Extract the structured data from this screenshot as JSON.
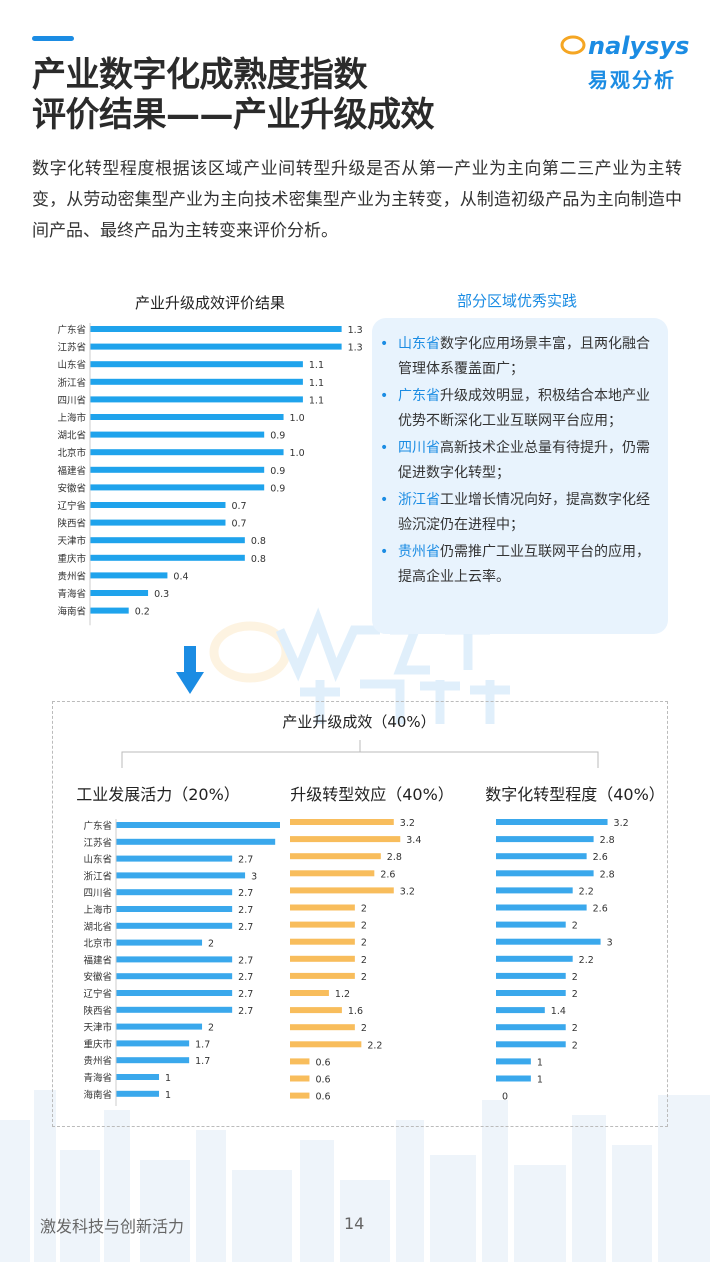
{
  "header": {
    "title_line1": "产业数字化成熟度指数",
    "title_line2": "评价结果——产业升级成效",
    "logo_en_prefix": "",
    "logo_en_rest": "nalysys",
    "logo_cn": "易观分析"
  },
  "intro": "数字化转型程度根据该区域产业间转型升级是否从第一产业为主向第二三产业为主转变，从劳动密集型产业为主向技术密集型产业为主转变，从制造初级产品为主向制造中间产品、最终产品为主转变来评价分析。",
  "practice": {
    "title": "部分区域优秀实践",
    "items": [
      {
        "region": "山东省",
        "text": "数字化应用场景丰富，且两化融合管理体系覆盖面广；"
      },
      {
        "region": "广东省",
        "text": "升级成效明显，积极结合本地产业优势不断深化工业互联网平台应用；"
      },
      {
        "region": "四川省",
        "text": "高新技术企业总量有待提升，仍需促进数字化转型；"
      },
      {
        "region": "浙江省",
        "text": "工业增长情况向好，提高数字化经验沉淀仍在进程中；"
      },
      {
        "region": "贵州省",
        "text": "仍需推广工业互联网平台的应用，提高企业上云率。"
      }
    ]
  },
  "footer": {
    "text": "激发科技与创新活力",
    "page": "14"
  },
  "colors": {
    "blue": "#3aa8ec",
    "orange": "#f8bd5c",
    "accent": "#1b8ce3"
  },
  "chart_data": [
    {
      "type": "bar",
      "orientation": "horizontal",
      "title": "产业升级成效评价结果",
      "categories": [
        "广东省",
        "江苏省",
        "山东省",
        "浙江省",
        "四川省",
        "上海市",
        "湖北省",
        "北京市",
        "福建省",
        "安徽省",
        "辽宁省",
        "陕西省",
        "天津市",
        "重庆市",
        "贵州省",
        "青海省",
        "海南省"
      ],
      "values": [
        1.3,
        1.3,
        1.1,
        1.1,
        1.1,
        1.0,
        0.9,
        1.0,
        0.9,
        0.9,
        0.7,
        0.7,
        0.8,
        0.8,
        0.4,
        0.3,
        0.2
      ],
      "value_labels": [
        "1.3",
        "1.3",
        "1.1",
        "1.1",
        "1.1",
        "1.0",
        "0.9",
        "1.0",
        "0.9",
        "0.9",
        "0.7",
        "0.7",
        "0.8",
        "0.8",
        "0.4",
        "0.3",
        "0.2"
      ],
      "color": "#1fa3ec",
      "xlim": [
        0,
        1.55
      ]
    },
    {
      "type": "bar",
      "orientation": "horizontal",
      "title": "产业升级成效（40%）",
      "sub_title": "工业发展活力（20%）",
      "categories": [
        "广东省",
        "江苏省",
        "山东省",
        "浙江省",
        "四川省",
        "上海市",
        "湖北省",
        "北京市",
        "福建省",
        "安徽省",
        "辽宁省",
        "陕西省",
        "天津市",
        "重庆市",
        "贵州省",
        "青海省",
        "海南省"
      ],
      "values": [
        4,
        3.7,
        2.7,
        3,
        2.7,
        2.7,
        2.7,
        2,
        2.7,
        2.7,
        2.7,
        2.7,
        2,
        1.7,
        1.7,
        1,
        1
      ],
      "value_labels": [
        "4",
        "3.7",
        "2.7",
        "3",
        "2.7",
        "2.7",
        "2.7",
        "2",
        "2.7",
        "2.7",
        "2.7",
        "2.7",
        "2",
        "1.7",
        "1.7",
        "1",
        "1"
      ],
      "color": "#3aa8ec",
      "xlim": [
        0,
        4.3
      ]
    },
    {
      "type": "bar",
      "orientation": "horizontal",
      "sub_title": "升级转型效应（40%）",
      "values": [
        3.2,
        3.4,
        2.8,
        2.6,
        3.2,
        2,
        2,
        2,
        2,
        2,
        1.2,
        1.6,
        2,
        2.2,
        0.6,
        0.6,
        0.6
      ],
      "value_labels": [
        "3.2",
        "3.4",
        "2.8",
        "2.6",
        "3.2",
        "2",
        "2",
        "2",
        "2",
        "2",
        "1.2",
        "1.6",
        "2",
        "2.2",
        "0.6",
        "0.6",
        "0.6"
      ],
      "color": "#f8bd5c",
      "xlim": [
        0,
        3.7
      ]
    },
    {
      "type": "bar",
      "orientation": "horizontal",
      "sub_title": "数字化转型程度（40%）",
      "values": [
        3.2,
        2.8,
        2.6,
        2.8,
        2.2,
        2.6,
        2,
        3,
        2.2,
        2,
        2,
        1.4,
        2,
        2,
        1,
        1,
        0
      ],
      "value_labels": [
        "3.2",
        "2.8",
        "2.6",
        "2.8",
        "2.2",
        "2.6",
        "2",
        "3",
        "2.2",
        "2",
        "2",
        "1.4",
        "2",
        "2",
        "1",
        "1",
        "0"
      ],
      "color": "#3aa8ec",
      "xlim": [
        0,
        3.5
      ]
    }
  ]
}
